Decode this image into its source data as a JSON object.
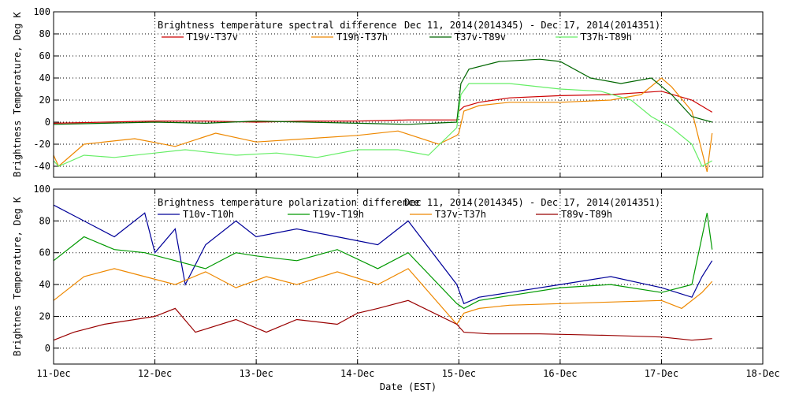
{
  "x_axis": {
    "label": "Date (EST)",
    "ticks": [
      "11-Dec",
      "12-Dec",
      "13-Dec",
      "14-Dec",
      "15-Dec",
      "16-Dec",
      "17-Dec",
      "18-Dec"
    ]
  },
  "colors": {
    "red": "#cc0000",
    "orange": "#ee8800",
    "darkgreen": "#006600",
    "lightgreen": "#66ee66",
    "navy": "#000099",
    "green": "#009900",
    "darkred": "#990000"
  },
  "chart_data": [
    {
      "type": "line",
      "title": "Brightness temperature spectral difference",
      "subtitle": "Dec 11, 2014(2014345) - Dec 17, 2014(2014351)",
      "xlabel": "",
      "ylabel": "Brightness Temperature, Deg K",
      "xlim": [
        0,
        7
      ],
      "ylim": [
        -50,
        100
      ],
      "yticks": [
        -40,
        -20,
        0,
        20,
        40,
        60,
        80,
        100
      ],
      "grid": true,
      "legend_position": "top",
      "series": [
        {
          "name": "T19v-T37v",
          "color": "#cc0000",
          "x": [
            0,
            0.5,
            1,
            1.5,
            2,
            2.5,
            3,
            3.5,
            3.98,
            4.0,
            4.05,
            4.2,
            4.5,
            5.0,
            5.5,
            6.0,
            6.3,
            6.5
          ],
          "y": [
            -1,
            0,
            1,
            1,
            0,
            1,
            1,
            2,
            2,
            10,
            14,
            18,
            22,
            24,
            25,
            28,
            20,
            9
          ]
        },
        {
          "name": "T19h-T37h",
          "color": "#ee8800",
          "x": [
            0,
            0.05,
            0.3,
            0.8,
            1.2,
            1.6,
            2.0,
            2.5,
            3.0,
            3.4,
            3.8,
            3.98,
            4.0,
            4.05,
            4.2,
            4.5,
            5.0,
            5.5,
            5.8,
            6.0,
            6.1,
            6.3,
            6.45,
            6.5
          ],
          "y": [
            -30,
            -40,
            -20,
            -15,
            -22,
            -10,
            -18,
            -15,
            -12,
            -8,
            -20,
            -12,
            -10,
            10,
            15,
            18,
            18,
            20,
            25,
            40,
            32,
            10,
            -45,
            -10
          ]
        },
        {
          "name": "T37v-T89v",
          "color": "#006600",
          "x": [
            0,
            0.5,
            1,
            1.5,
            2,
            2.5,
            3,
            3.5,
            3.98,
            4.02,
            4.1,
            4.4,
            4.8,
            5.0,
            5.3,
            5.6,
            5.9,
            6.1,
            6.3,
            6.5
          ],
          "y": [
            -2,
            -1,
            0,
            -1,
            1,
            0,
            -1,
            -2,
            0,
            35,
            48,
            55,
            57,
            55,
            40,
            35,
            40,
            25,
            5,
            0
          ]
        },
        {
          "name": "T37h-T89h",
          "color": "#66ee66",
          "x": [
            0,
            0.05,
            0.3,
            0.6,
            1.0,
            1.3,
            1.8,
            2.2,
            2.6,
            3.0,
            3.4,
            3.7,
            3.98,
            4.02,
            4.1,
            4.5,
            5.0,
            5.4,
            5.7,
            5.9,
            6.1,
            6.3,
            6.4,
            6.5
          ],
          "y": [
            -35,
            -40,
            -30,
            -32,
            -28,
            -25,
            -30,
            -28,
            -32,
            -25,
            -25,
            -30,
            -5,
            25,
            35,
            35,
            30,
            28,
            20,
            5,
            -5,
            -20,
            -40,
            -35
          ]
        }
      ]
    },
    {
      "type": "line",
      "title": "Brightness temperature polarization difference",
      "subtitle": "Dec 11, 2014(2014345) - Dec 17, 2014(2014351)",
      "xlabel": "Date (EST)",
      "ylabel": "Brightnes Temperature, Deg K",
      "xlim": [
        0,
        7
      ],
      "ylim": [
        -10,
        100
      ],
      "yticks": [
        0,
        20,
        40,
        60,
        80,
        100
      ],
      "grid": true,
      "legend_position": "top",
      "series": [
        {
          "name": "T10v-T10h",
          "color": "#000099",
          "x": [
            0,
            0.3,
            0.6,
            0.9,
            1.0,
            1.2,
            1.3,
            1.5,
            1.8,
            2.0,
            2.4,
            2.8,
            3.2,
            3.5,
            3.98,
            4.05,
            4.2,
            4.5,
            5.0,
            5.5,
            6.0,
            6.3,
            6.4,
            6.5
          ],
          "y": [
            90,
            80,
            70,
            85,
            60,
            75,
            40,
            65,
            80,
            70,
            75,
            70,
            65,
            80,
            40,
            28,
            32,
            35,
            40,
            45,
            38,
            32,
            45,
            55
          ]
        },
        {
          "name": "T19v-T19h",
          "color": "#009900",
          "x": [
            0,
            0.3,
            0.6,
            0.9,
            1.2,
            1.5,
            1.8,
            2.0,
            2.4,
            2.8,
            3.2,
            3.5,
            3.98,
            4.05,
            4.2,
            4.5,
            5.0,
            5.5,
            6.0,
            6.3,
            6.45,
            6.5
          ],
          "y": [
            55,
            70,
            62,
            60,
            55,
            50,
            60,
            58,
            55,
            62,
            50,
            60,
            28,
            25,
            30,
            33,
            38,
            40,
            35,
            40,
            85,
            62
          ]
        },
        {
          "name": "T37v-T37h",
          "color": "#ee8800",
          "x": [
            0,
            0.3,
            0.6,
            0.9,
            1.2,
            1.5,
            1.8,
            2.1,
            2.4,
            2.8,
            3.2,
            3.5,
            3.98,
            4.05,
            4.2,
            4.5,
            5.0,
            5.5,
            6.0,
            6.2,
            6.4,
            6.5
          ],
          "y": [
            30,
            45,
            50,
            45,
            40,
            48,
            38,
            45,
            40,
            48,
            40,
            50,
            15,
            22,
            25,
            27,
            28,
            29,
            30,
            25,
            35,
            42
          ]
        },
        {
          "name": "T89v-T89h",
          "color": "#990000",
          "x": [
            0,
            0.2,
            0.5,
            0.8,
            1.0,
            1.2,
            1.4,
            1.8,
            2.1,
            2.4,
            2.8,
            3.0,
            3.2,
            3.5,
            3.98,
            4.05,
            4.3,
            4.8,
            5.5,
            6.0,
            6.3,
            6.5
          ],
          "y": [
            5,
            10,
            15,
            18,
            20,
            25,
            10,
            18,
            10,
            18,
            15,
            22,
            25,
            30,
            15,
            10,
            9,
            9,
            8,
            7,
            5,
            6
          ]
        }
      ]
    }
  ]
}
